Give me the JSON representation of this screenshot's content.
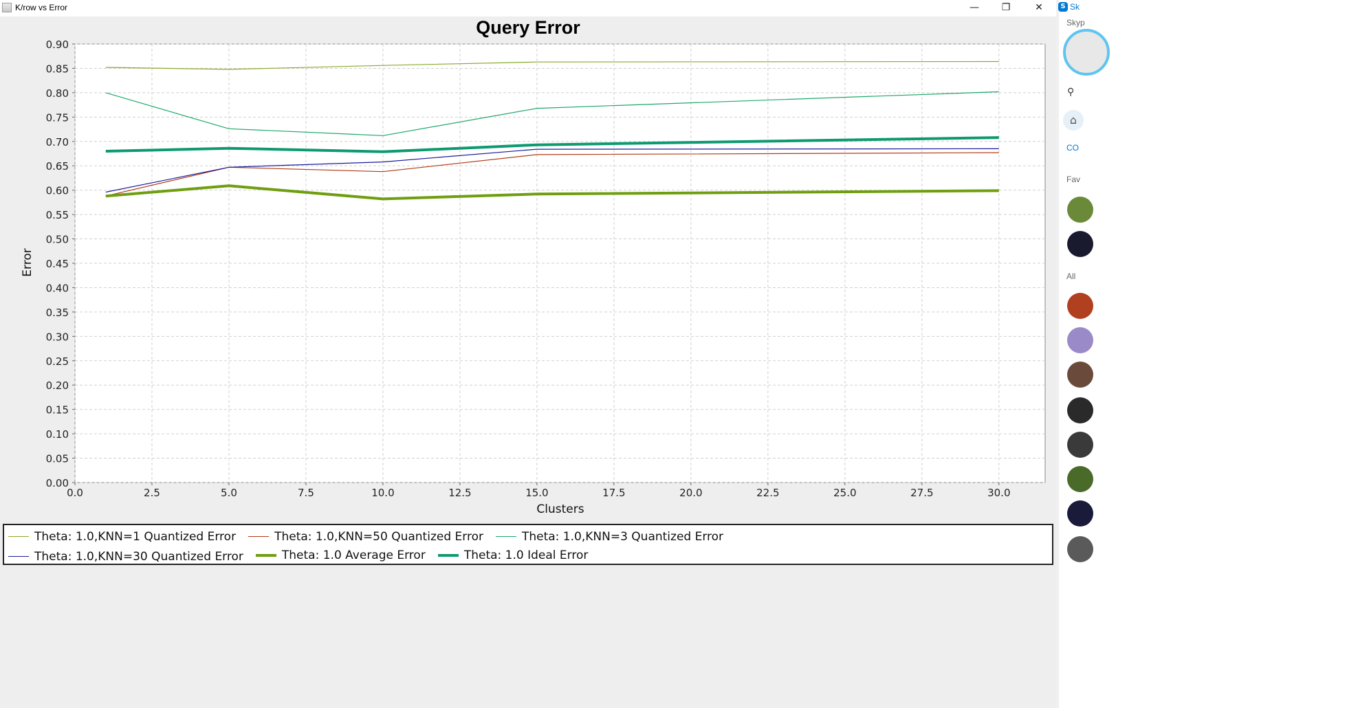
{
  "window": {
    "title": "K/row vs Error",
    "minimize": "—",
    "maximize": "❐",
    "close": "✕"
  },
  "chart_data": {
    "type": "line",
    "title": "Query Error",
    "xlabel": "Clusters",
    "ylabel": "Error",
    "xlim": [
      0,
      31.5
    ],
    "ylim": [
      0,
      0.9
    ],
    "xticks": [
      "0.0",
      "2.5",
      "5.0",
      "7.5",
      "10.0",
      "12.5",
      "15.0",
      "17.5",
      "20.0",
      "22.5",
      "25.0",
      "27.5",
      "30.0"
    ],
    "yticks": [
      "0.00",
      "0.05",
      "0.10",
      "0.15",
      "0.20",
      "0.25",
      "0.30",
      "0.35",
      "0.40",
      "0.45",
      "0.50",
      "0.55",
      "0.60",
      "0.65",
      "0.70",
      "0.75",
      "0.80",
      "0.85",
      "0.90"
    ],
    "grid": true,
    "legend_position": "bottom",
    "x": [
      1,
      5,
      10,
      15,
      30
    ],
    "series": [
      {
        "name": "Theta: 1.0,KNN=1 Quantized Error",
        "color": "#8aa82a",
        "width": 1.2,
        "values": [
          0.852,
          0.848,
          0.856,
          0.863,
          0.864
        ]
      },
      {
        "name": "Theta: 1.0,KNN=50 Quantized Error",
        "color": "#b03a12",
        "width": 1.2,
        "values": [
          0.588,
          0.647,
          0.638,
          0.673,
          0.677
        ]
      },
      {
        "name": "Theta: 1.0,KNN=3 Quantized Error",
        "color": "#1ea86a",
        "width": 1.2,
        "values": [
          0.8,
          0.726,
          0.712,
          0.768,
          0.802
        ]
      },
      {
        "name": "Theta: 1.0,KNN=30 Quantized Error",
        "color": "#1a1a9a",
        "width": 1.2,
        "values": [
          0.596,
          0.647,
          0.658,
          0.684,
          0.685
        ]
      },
      {
        "name": "Theta: 1.0 Average Error",
        "color": "#6f9e10",
        "width": 4,
        "values": [
          0.588,
          0.609,
          0.582,
          0.592,
          0.599
        ]
      },
      {
        "name": "Theta: 1.0 Ideal Error",
        "color": "#0e9a70",
        "width": 4,
        "values": [
          0.68,
          0.686,
          0.679,
          0.693,
          0.708
        ]
      }
    ]
  },
  "skype": {
    "title": "Sk",
    "subtitle": "Skyp",
    "contacts_label": "CO",
    "favorites_label": "Fav",
    "all_label": "All"
  }
}
